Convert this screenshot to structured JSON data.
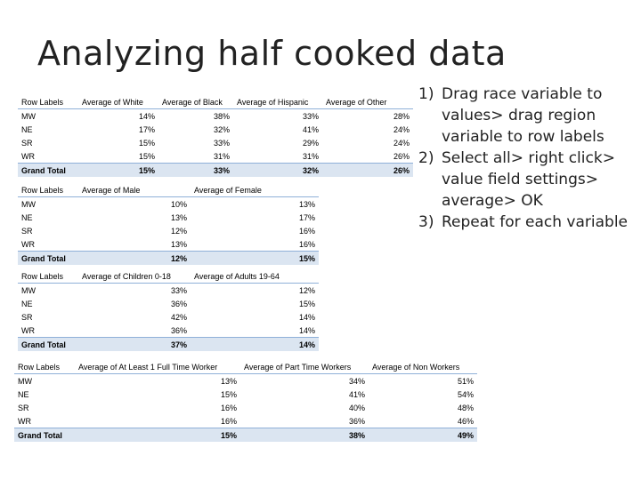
{
  "title": "Analyzing half cooked data",
  "tables": [
    {
      "headers": [
        "Row Labels",
        "Average of White",
        "Average of Black",
        "Average of Hispanic",
        "Average of Other"
      ],
      "rows": [
        [
          "MW",
          "14%",
          "38%",
          "33%",
          "28%"
        ],
        [
          "NE",
          "17%",
          "32%",
          "41%",
          "24%"
        ],
        [
          "SR",
          "15%",
          "33%",
          "29%",
          "24%"
        ],
        [
          "WR",
          "15%",
          "31%",
          "31%",
          "26%"
        ]
      ],
      "total": [
        "Grand Total",
        "15%",
        "33%",
        "32%",
        "26%"
      ]
    },
    {
      "headers": [
        "Row Labels",
        "Average of Male",
        "Average of Female"
      ],
      "rows": [
        [
          "MW",
          "10%",
          "13%"
        ],
        [
          "NE",
          "13%",
          "17%"
        ],
        [
          "SR",
          "12%",
          "16%"
        ],
        [
          "WR",
          "13%",
          "16%"
        ]
      ],
      "total": [
        "Grand Total",
        "12%",
        "15%"
      ]
    },
    {
      "headers": [
        "Row Labels",
        "Average of Children 0-18",
        "Average of Adults 19-64"
      ],
      "rows": [
        [
          "MW",
          "33%",
          "12%"
        ],
        [
          "NE",
          "36%",
          "15%"
        ],
        [
          "SR",
          "42%",
          "14%"
        ],
        [
          "WR",
          "36%",
          "14%"
        ]
      ],
      "total": [
        "Grand Total",
        "37%",
        "14%"
      ]
    },
    {
      "headers": [
        "Row Labels",
        "Average of At Least 1 Full Time Worker",
        "Average of Part Time Workers",
        "Average of Non Workers"
      ],
      "rows": [
        [
          "MW",
          "13%",
          "34%",
          "51%"
        ],
        [
          "NE",
          "15%",
          "41%",
          "54%"
        ],
        [
          "SR",
          "16%",
          "40%",
          "48%"
        ],
        [
          "WR",
          "16%",
          "36%",
          "46%"
        ]
      ],
      "total": [
        "Grand Total",
        "15%",
        "38%",
        "49%"
      ]
    }
  ],
  "steps": [
    {
      "num": "1)",
      "text": "Drag race variable to values> drag region variable to row labels"
    },
    {
      "num": "2)",
      "text": "Select all> right click> value field settings> average> OK"
    },
    {
      "num": "3)",
      "text": "Repeat for each variable"
    }
  ]
}
